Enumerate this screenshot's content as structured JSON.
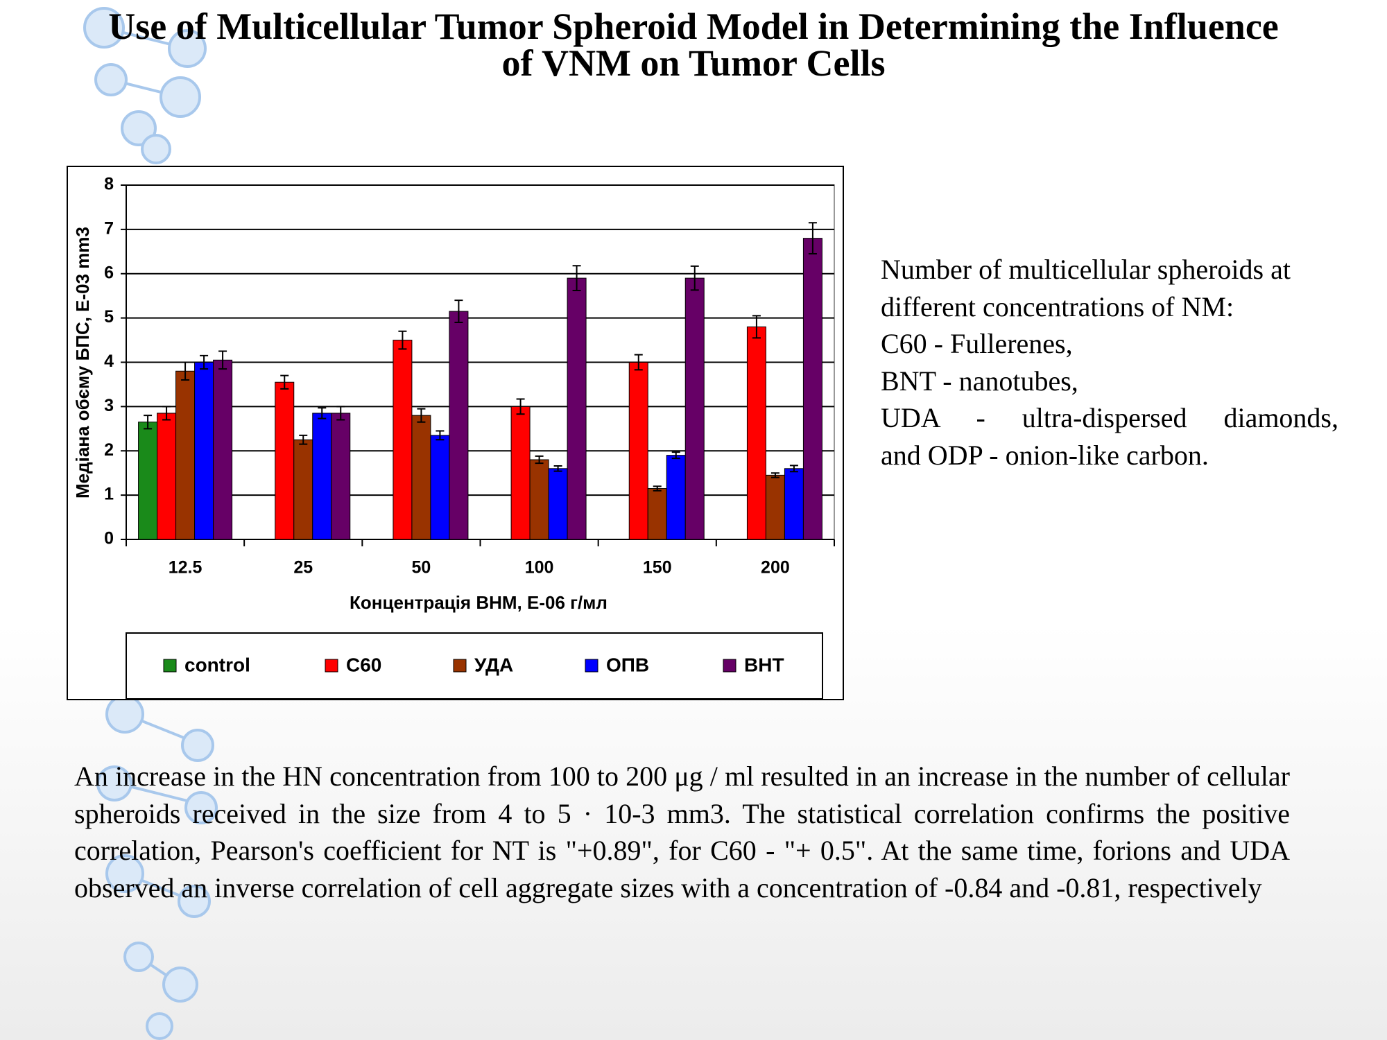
{
  "slide": {
    "title_line1": "Use of Multicellular Tumor Spheroid Model in Determining the Influence",
    "title_line2": "of VNM on Tumor Cells",
    "side_text": [
      "Number of multicellular spheroids at",
      "different concentrations of NM:",
      "C60 - Fullerenes,",
      "BNT - nanotubes,",
      "UDA - ultra-dispersed diamonds,",
      "and ODP - onion-like carbon."
    ],
    "paragraph": "An increase in the HN concentration from 100 to 200 μg / ml resulted in an increase in the number of cellular spheroids received in the size from 4 to 5 · 10-3 mm3. The statistical correlation confirms the positive correlation, Pearson's coefficient for NT is \"+0.89\", for C60 - \"+ 0.5\". At the same time, forions and UDA observed an inverse correlation of cell aggregate sizes with a concentration of -0.84 and -0.81, respectively"
  },
  "chart_data": {
    "type": "bar",
    "x_label": "Концентрація ВНМ, Е-06 г/мл",
    "y_label": "Медіана обєму БПС, Е-03 mm3",
    "categories": [
      "12.5",
      "25",
      "50",
      "100",
      "150",
      "200"
    ],
    "series": [
      {
        "name": "control",
        "color": "#1a8a1a",
        "values": [
          2.65,
          null,
          null,
          null,
          null,
          null
        ],
        "errors": [
          0.15,
          null,
          null,
          null,
          null,
          null
        ]
      },
      {
        "name": "C60",
        "color": "#ff0000",
        "values": [
          2.85,
          3.55,
          4.5,
          3.0,
          4.0,
          4.8
        ],
        "errors": [
          0.15,
          0.15,
          0.2,
          0.17,
          0.17,
          0.25
        ]
      },
      {
        "name": "УДА",
        "color": "#993300",
        "values": [
          3.8,
          2.25,
          2.8,
          1.8,
          1.15,
          1.45
        ],
        "errors": [
          0.2,
          0.1,
          0.15,
          0.08,
          0.05,
          0.05
        ]
      },
      {
        "name": "ОПВ",
        "color": "#0000ff",
        "values": [
          4.0,
          2.85,
          2.35,
          1.6,
          1.9,
          1.6
        ],
        "errors": [
          0.15,
          0.12,
          0.1,
          0.06,
          0.07,
          0.07
        ]
      },
      {
        "name": "ВНТ",
        "color": "#660066",
        "values": [
          4.05,
          2.85,
          5.15,
          5.9,
          5.9,
          6.8
        ],
        "errors": [
          0.2,
          0.15,
          0.25,
          0.28,
          0.27,
          0.35
        ]
      }
    ],
    "ylim": [
      0,
      8
    ],
    "yticks": [
      0,
      1,
      2,
      3,
      4,
      5,
      6,
      7,
      8
    ],
    "grid": true,
    "legend": "bottom"
  }
}
